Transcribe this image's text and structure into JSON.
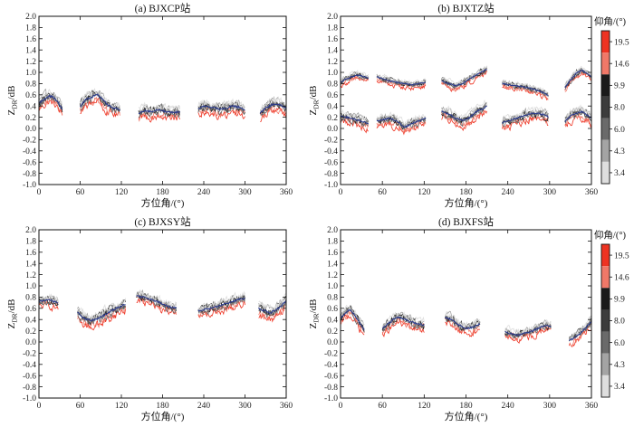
{
  "colorbar": {
    "title": "仰角/(°)",
    "ticks": [
      "19.5",
      "14.6",
      "9.9",
      "8.0",
      "6.0",
      "4.3",
      "3.4"
    ],
    "colors": [
      "#ee3322",
      "#f07868",
      "#1a1a1a",
      "#3c3c3c",
      "#6a6a6a",
      "#a4a4a4",
      "#dedede"
    ]
  },
  "chart_data": [
    {
      "type": "line",
      "title": "(a) BJXCP站",
      "xlabel": "方位角/(°)",
      "ylabel": "Z_DR/dB",
      "xlim": [
        0,
        360
      ],
      "ylim": [
        -1.0,
        2.0
      ],
      "xticks": [
        0,
        60,
        120,
        180,
        240,
        300,
        360
      ],
      "yticks": [
        -1.0,
        -0.8,
        -0.6,
        -0.4,
        -0.2,
        0,
        0.2,
        0.4,
        0.6,
        0.8,
        1.0,
        1.2,
        1.4,
        1.6,
        1.8,
        2.0
      ],
      "segments": [
        {
          "x": [
            0,
            7,
            14,
            21,
            28,
            34
          ],
          "y": [
            0.45,
            0.52,
            0.58,
            0.56,
            0.46,
            0.34
          ],
          "spread": 0.13
        },
        {
          "x": [
            60,
            68,
            76,
            84,
            92,
            100,
            108,
            118
          ],
          "y": [
            0.38,
            0.52,
            0.55,
            0.62,
            0.52,
            0.42,
            0.36,
            0.34
          ],
          "spread": 0.13
        },
        {
          "x": [
            145,
            155,
            165,
            175,
            185,
            195,
            205
          ],
          "y": [
            0.28,
            0.32,
            0.3,
            0.34,
            0.3,
            0.28,
            0.3
          ],
          "spread": 0.13
        },
        {
          "x": [
            232,
            242,
            252,
            262,
            272,
            282,
            292,
            300
          ],
          "y": [
            0.36,
            0.4,
            0.38,
            0.34,
            0.36,
            0.4,
            0.38,
            0.32
          ],
          "spread": 0.13
        },
        {
          "x": [
            322,
            330,
            338,
            346,
            354,
            360
          ],
          "y": [
            0.28,
            0.36,
            0.42,
            0.44,
            0.4,
            0.35
          ],
          "spread": 0.13
        }
      ]
    },
    {
      "type": "line",
      "title": "(b) BJXTZ站",
      "xlabel": "方位角/(°)",
      "ylabel": "Z_DR/dB",
      "xlim": [
        0,
        360
      ],
      "ylim": [
        -1.0,
        2.0
      ],
      "xticks": [
        0,
        60,
        120,
        180,
        240,
        300,
        360
      ],
      "yticks": [
        -1.0,
        -0.8,
        -0.6,
        -0.4,
        -0.2,
        0,
        0.2,
        0.4,
        0.6,
        0.8,
        1.0,
        1.2,
        1.4,
        1.6,
        1.8,
        2.0
      ],
      "segments": [
        {
          "x": [
            0,
            8,
            16,
            24,
            32,
            40
          ],
          "y": [
            0.82,
            0.88,
            0.92,
            0.95,
            0.93,
            0.9
          ],
          "spread": 0.08
        },
        {
          "x": [
            52,
            62,
            72,
            82,
            92,
            102,
            112,
            122
          ],
          "y": [
            0.92,
            0.88,
            0.84,
            0.82,
            0.8,
            0.78,
            0.8,
            0.82
          ],
          "spread": 0.08
        },
        {
          "x": [
            145,
            155,
            165,
            175,
            185,
            195,
            205,
            210
          ],
          "y": [
            0.85,
            0.8,
            0.76,
            0.8,
            0.88,
            0.96,
            1.02,
            1.06
          ],
          "spread": 0.08
        },
        {
          "x": [
            232,
            242,
            252,
            262,
            272,
            282,
            292,
            298
          ],
          "y": [
            0.8,
            0.78,
            0.76,
            0.74,
            0.72,
            0.68,
            0.64,
            0.58
          ],
          "spread": 0.08
        },
        {
          "x": [
            322,
            330,
            338,
            346,
            354,
            360
          ],
          "y": [
            0.72,
            0.86,
            0.98,
            1.04,
            0.98,
            0.92
          ],
          "spread": 0.08
        },
        {
          "x": [
            0,
            8,
            16,
            24,
            32,
            40
          ],
          "y": [
            0.22,
            0.2,
            0.18,
            0.15,
            0.12,
            0.1
          ],
          "spread": 0.12
        },
        {
          "x": [
            52,
            62,
            72,
            82,
            92,
            102,
            112,
            122
          ],
          "y": [
            0.14,
            0.16,
            0.18,
            0.12,
            0.02,
            0.08,
            0.14,
            0.18
          ],
          "spread": 0.12
        },
        {
          "x": [
            145,
            155,
            165,
            175,
            185,
            195,
            205,
            210
          ],
          "y": [
            0.3,
            0.26,
            0.18,
            0.14,
            0.2,
            0.3,
            0.36,
            0.4
          ],
          "spread": 0.12
        },
        {
          "x": [
            232,
            242,
            252,
            262,
            272,
            282,
            292,
            298
          ],
          "y": [
            0.1,
            0.14,
            0.18,
            0.22,
            0.26,
            0.28,
            0.24,
            0.2
          ],
          "spread": 0.12
        },
        {
          "x": [
            322,
            330,
            338,
            346,
            354,
            360
          ],
          "y": [
            0.12,
            0.22,
            0.28,
            0.3,
            0.24,
            0.18
          ],
          "spread": 0.12
        }
      ]
    },
    {
      "type": "line",
      "title": "(c) BJXSY站",
      "xlabel": "方位角/(°)",
      "ylabel": "Z_DR/dB",
      "xlim": [
        0,
        360
      ],
      "ylim": [
        -1.0,
        2.0
      ],
      "xticks": [
        0,
        60,
        120,
        180,
        240,
        300,
        360
      ],
      "yticks": [
        -1.0,
        -0.8,
        -0.6,
        -0.4,
        -0.2,
        0,
        0.2,
        0.4,
        0.6,
        0.8,
        1.0,
        1.2,
        1.4,
        1.6,
        1.8,
        2.0
      ],
      "segments": [
        {
          "x": [
            0,
            7,
            14,
            21,
            28
          ],
          "y": [
            0.72,
            0.74,
            0.76,
            0.72,
            0.7
          ],
          "spread": 0.12
        },
        {
          "x": [
            56,
            66,
            76,
            86,
            96,
            106,
            116,
            126
          ],
          "y": [
            0.52,
            0.42,
            0.38,
            0.42,
            0.48,
            0.56,
            0.62,
            0.68
          ],
          "spread": 0.14
        },
        {
          "x": [
            142,
            152,
            162,
            172,
            182,
            192,
            200
          ],
          "y": [
            0.82,
            0.8,
            0.76,
            0.72,
            0.66,
            0.62,
            0.6
          ],
          "spread": 0.12
        },
        {
          "x": [
            232,
            242,
            252,
            262,
            272,
            282,
            292,
            300
          ],
          "y": [
            0.56,
            0.58,
            0.6,
            0.64,
            0.68,
            0.72,
            0.76,
            0.78
          ],
          "spread": 0.12
        },
        {
          "x": [
            320,
            328,
            336,
            344,
            352,
            360
          ],
          "y": [
            0.6,
            0.56,
            0.52,
            0.56,
            0.64,
            0.74
          ],
          "spread": 0.14
        }
      ]
    },
    {
      "type": "line",
      "title": "(d) BJXFS站",
      "xlabel": "方位角/(°)",
      "ylabel": "Z_DR/dB",
      "xlim": [
        0,
        360
      ],
      "ylim": [
        -1.0,
        2.0
      ],
      "xticks": [
        0,
        60,
        120,
        180,
        240,
        300,
        360
      ],
      "yticks": [
        -1.0,
        -0.8,
        -0.6,
        -0.4,
        -0.2,
        0,
        0.2,
        0.4,
        0.6,
        0.8,
        1.0,
        1.2,
        1.4,
        1.6,
        1.8,
        2.0
      ],
      "segments": [
        {
          "x": [
            0,
            7,
            14,
            21,
            28,
            34
          ],
          "y": [
            0.42,
            0.52,
            0.58,
            0.46,
            0.32,
            0.22
          ],
          "spread": 0.12
        },
        {
          "x": [
            60,
            70,
            80,
            90,
            100,
            110,
            120
          ],
          "y": [
            0.24,
            0.34,
            0.44,
            0.42,
            0.36,
            0.32,
            0.3
          ],
          "spread": 0.12
        },
        {
          "x": [
            150,
            160,
            170,
            180,
            190,
            200
          ],
          "y": [
            0.44,
            0.4,
            0.3,
            0.24,
            0.26,
            0.32
          ],
          "spread": 0.12
        },
        {
          "x": [
            236,
            246,
            256,
            266,
            276,
            286,
            296,
            302
          ],
          "y": [
            0.18,
            0.14,
            0.12,
            0.16,
            0.2,
            0.26,
            0.3,
            0.28
          ],
          "spread": 0.11
        },
        {
          "x": [
            328,
            336,
            344,
            352,
            360
          ],
          "y": [
            0.02,
            0.08,
            0.16,
            0.26,
            0.36
          ],
          "spread": 0.11
        }
      ]
    }
  ]
}
